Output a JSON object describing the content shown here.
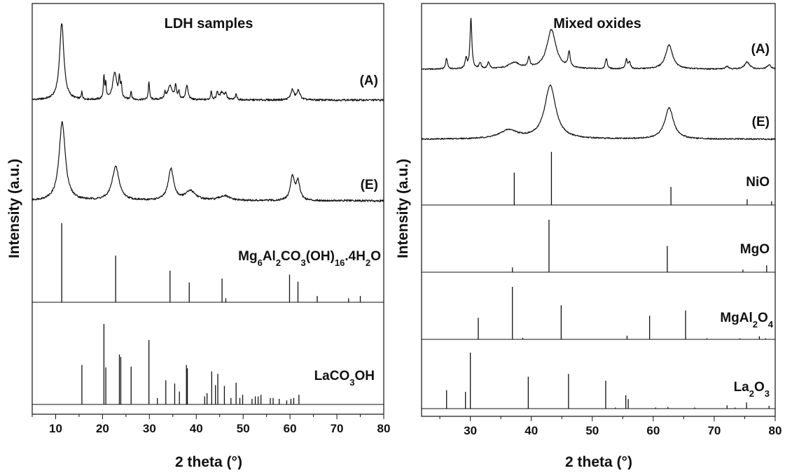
{
  "chart_data": [
    {
      "type": "line",
      "title": "LDH samples",
      "xlabel": "2 theta (°)",
      "ylabel": "Intensity (a.u.)",
      "xlim": [
        5,
        80
      ],
      "xticks": [
        10,
        20,
        30,
        40,
        50,
        60,
        70,
        80
      ],
      "grid": false,
      "series": [
        {
          "name": "(A)",
          "kind": "trace",
          "peaks": [
            {
              "x": 11.3,
              "h": 1.0,
              "w": 0.55
            },
            {
              "x": 15.6,
              "h": 0.1,
              "w": 0.12
            },
            {
              "x": 20.3,
              "h": 0.3,
              "w": 0.15
            },
            {
              "x": 20.7,
              "h": 0.2,
              "w": 0.12
            },
            {
              "x": 22.6,
              "h": 0.36,
              "w": 0.5
            },
            {
              "x": 23.6,
              "h": 0.24,
              "w": 0.18
            },
            {
              "x": 24.0,
              "h": 0.16,
              "w": 0.15
            },
            {
              "x": 26.1,
              "h": 0.11,
              "w": 0.15
            },
            {
              "x": 29.9,
              "h": 0.24,
              "w": 0.15
            },
            {
              "x": 33.3,
              "h": 0.08,
              "w": 0.15
            },
            {
              "x": 34.4,
              "h": 0.18,
              "w": 0.6
            },
            {
              "x": 35.6,
              "h": 0.17,
              "w": 0.2
            },
            {
              "x": 36.3,
              "h": 0.1,
              "w": 0.15
            },
            {
              "x": 38.0,
              "h": 0.18,
              "w": 0.3
            },
            {
              "x": 43.2,
              "h": 0.12,
              "w": 0.15
            },
            {
              "x": 44.5,
              "h": 0.1,
              "w": 0.2
            },
            {
              "x": 45.5,
              "h": 0.1,
              "w": 0.5
            },
            {
              "x": 46.3,
              "h": 0.08,
              "w": 0.2
            },
            {
              "x": 48.5,
              "h": 0.07,
              "w": 0.2
            },
            {
              "x": 60.5,
              "h": 0.13,
              "w": 0.4
            },
            {
              "x": 61.8,
              "h": 0.12,
              "w": 0.4
            }
          ]
        },
        {
          "name": "(E)",
          "kind": "trace",
          "peaks": [
            {
              "x": 11.4,
              "h": 1.0,
              "w": 0.8
            },
            {
              "x": 22.8,
              "h": 0.43,
              "w": 0.9
            },
            {
              "x": 34.6,
              "h": 0.4,
              "w": 0.7
            },
            {
              "x": 38.8,
              "h": 0.12,
              "w": 1.3
            },
            {
              "x": 46.0,
              "h": 0.06,
              "w": 1.3
            },
            {
              "x": 60.5,
              "h": 0.3,
              "w": 0.5
            },
            {
              "x": 61.7,
              "h": 0.24,
              "w": 0.5
            }
          ]
        },
        {
          "name": "Mg₆Al₂CO₃(OH)₁₆.4H₂O",
          "kind": "sticks",
          "x": [
            11.3,
            22.8,
            34.4,
            38.5,
            45.5,
            46.3,
            59.9,
            61.7,
            65.8,
            72.5,
            75.0
          ],
          "values": [
            1.0,
            0.59,
            0.4,
            0.25,
            0.3,
            0.05,
            0.35,
            0.26,
            0.08,
            0.05,
            0.08
          ]
        },
        {
          "name": "LaCO₃OH",
          "kind": "sticks",
          "x": [
            15.6,
            20.3,
            20.7,
            23.6,
            23.9,
            26.1,
            29.9,
            31.7,
            33.5,
            35.4,
            36.4,
            37.9,
            38.1,
            41.8,
            42.3,
            43.3,
            44.1,
            44.6,
            46.0,
            47.4,
            48.5,
            49.3,
            49.9,
            51.9,
            52.6,
            53.2,
            53.8,
            55.8,
            56.4,
            57.7,
            59.3,
            60.2,
            60.8,
            61.9
          ],
          "values": [
            0.49,
            1.0,
            0.46,
            0.62,
            0.59,
            0.47,
            0.8,
            0.08,
            0.3,
            0.26,
            0.16,
            0.49,
            0.45,
            0.1,
            0.14,
            0.41,
            0.24,
            0.38,
            0.23,
            0.08,
            0.27,
            0.08,
            0.12,
            0.07,
            0.1,
            0.1,
            0.12,
            0.08,
            0.08,
            0.07,
            0.05,
            0.07,
            0.08,
            0.12
          ]
        }
      ]
    },
    {
      "type": "line",
      "title": "Mixed oxides",
      "xlabel": "2 theta (°)",
      "ylabel": "Intensity (a.u.)",
      "xlim": [
        22,
        80
      ],
      "xticks": [
        30,
        40,
        50,
        60,
        70,
        80
      ],
      "grid": false,
      "series": [
        {
          "name": "(A)",
          "kind": "trace",
          "peaks": [
            {
              "x": 26.1,
              "h": 0.21,
              "w": 0.18
            },
            {
              "x": 29.3,
              "h": 0.2,
              "w": 0.18
            },
            {
              "x": 30.1,
              "h": 1.0,
              "w": 0.18
            },
            {
              "x": 31.6,
              "h": 0.12,
              "w": 0.2
            },
            {
              "x": 33.0,
              "h": 0.13,
              "w": 0.2
            },
            {
              "x": 37.2,
              "h": 0.12,
              "w": 1.1
            },
            {
              "x": 39.6,
              "h": 0.2,
              "w": 0.2
            },
            {
              "x": 43.3,
              "h": 0.78,
              "w": 0.9
            },
            {
              "x": 46.2,
              "h": 0.3,
              "w": 0.2
            },
            {
              "x": 52.3,
              "h": 0.21,
              "w": 0.18
            },
            {
              "x": 55.6,
              "h": 0.18,
              "w": 0.18
            },
            {
              "x": 56.1,
              "h": 0.14,
              "w": 0.18
            },
            {
              "x": 62.6,
              "h": 0.48,
              "w": 0.7
            },
            {
              "x": 72.1,
              "h": 0.06,
              "w": 0.3
            },
            {
              "x": 75.4,
              "h": 0.14,
              "w": 0.5
            },
            {
              "x": 79.0,
              "h": 0.08,
              "w": 0.4
            }
          ]
        },
        {
          "name": "(E)",
          "kind": "trace",
          "peaks": [
            {
              "x": 36.3,
              "h": 0.16,
              "w": 1.8
            },
            {
              "x": 43.1,
              "h": 1.0,
              "w": 1.1
            },
            {
              "x": 62.6,
              "h": 0.59,
              "w": 0.85
            }
          ]
        },
        {
          "name": "NiO",
          "kind": "sticks",
          "x": [
            37.2,
            43.3,
            62.9,
            75.4,
            79.4
          ],
          "values": [
            0.61,
            1.0,
            0.34,
            0.11,
            0.07
          ]
        },
        {
          "name": "MgO",
          "kind": "sticks",
          "x": [
            36.9,
            42.9,
            62.3,
            74.7,
            78.6
          ],
          "values": [
            0.09,
            1.0,
            0.5,
            0.05,
            0.13
          ]
        },
        {
          "name": "MgAl₂O₄",
          "kind": "sticks",
          "x": [
            31.3,
            36.9,
            38.6,
            44.9,
            55.7,
            59.4,
            65.3,
            68.8,
            74.2,
            77.4,
            78.4
          ],
          "values": [
            0.41,
            1.0,
            0.03,
            0.65,
            0.07,
            0.45,
            0.55,
            0.02,
            0.02,
            0.06,
            0.02
          ]
        },
        {
          "name": "La₂O₃",
          "kind": "sticks",
          "x": [
            26.1,
            29.2,
            30.0,
            39.5,
            46.1,
            52.2,
            53.8,
            55.5,
            55.9,
            60.4,
            62.4,
            66.8,
            72.1,
            73.4,
            75.3,
            79.0
          ],
          "values": [
            0.33,
            0.3,
            1.0,
            0.57,
            0.62,
            0.5,
            0.02,
            0.24,
            0.17,
            0.02,
            0.03,
            0.02,
            0.06,
            0.02,
            0.11,
            0.05
          ]
        }
      ]
    }
  ]
}
